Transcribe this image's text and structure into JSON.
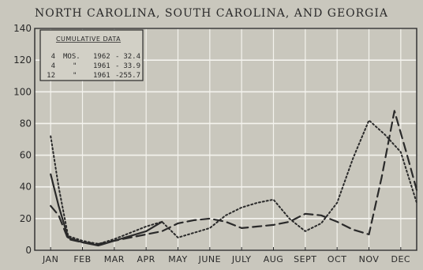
{
  "chart_data": {
    "type": "line",
    "title": "NORTH CAROLINA, SOUTH CAROLINA, AND GEORGIA",
    "xlabel": "",
    "ylabel": "",
    "ylim": [
      0,
      140
    ],
    "yticks": [
      0,
      20,
      40,
      60,
      80,
      100,
      120,
      140
    ],
    "categories": [
      "JAN",
      "FEB",
      "MAR",
      "APR",
      "MAY",
      "JUNE",
      "JULY",
      "AUG",
      "SEPT",
      "OCT",
      "NOV",
      "DEC"
    ],
    "grid": true,
    "legend": {
      "title": "CUMULATIVE DATA",
      "placement": "top-left",
      "rows": [
        {
          "col1": "4",
          "col2": "MOS.",
          "col3": "1962",
          "col4": "32.4"
        },
        {
          "col1": "4",
          "col2": "\"",
          "col3": "1961",
          "col4": "33.9"
        },
        {
          "col1": "12",
          "col2": "\"",
          "col3": "1961",
          "col4": "255.7"
        }
      ]
    },
    "series": [
      {
        "style": "solid",
        "color": "#2a2a2a",
        "points": [
          [
            0.0,
            48
          ],
          [
            0.25,
            28
          ],
          [
            0.55,
            8
          ],
          [
            1.0,
            5
          ],
          [
            1.5,
            3
          ],
          [
            2.0,
            6
          ],
          [
            2.5,
            9
          ],
          [
            3.0,
            12
          ],
          [
            3.5,
            18
          ]
        ]
      },
      {
        "style": "dashed",
        "color": "#2a2a2a",
        "points": [
          [
            0.0,
            28
          ],
          [
            0.25,
            22
          ],
          [
            0.55,
            7
          ],
          [
            1.0,
            5
          ],
          [
            1.5,
            4
          ],
          [
            2.0,
            6
          ],
          [
            2.5,
            8
          ],
          [
            3.0,
            10
          ],
          [
            3.5,
            12
          ],
          [
            4.0,
            17
          ],
          [
            4.5,
            19
          ],
          [
            5.0,
            20
          ],
          [
            5.5,
            18
          ],
          [
            6.0,
            14
          ],
          [
            6.5,
            15
          ],
          [
            7.0,
            16
          ],
          [
            7.5,
            18
          ],
          [
            8.0,
            23
          ],
          [
            8.5,
            22
          ],
          [
            9.0,
            18
          ],
          [
            9.5,
            13
          ],
          [
            10.0,
            10
          ],
          [
            10.4,
            46
          ],
          [
            10.8,
            88
          ],
          [
            11.2,
            60
          ],
          [
            11.5,
            38
          ]
        ]
      },
      {
        "style": "dotted",
        "color": "#2a2a2a",
        "points": [
          [
            0.0,
            72
          ],
          [
            0.25,
            40
          ],
          [
            0.55,
            9
          ],
          [
            1.0,
            6
          ],
          [
            1.5,
            4
          ],
          [
            2.0,
            7
          ],
          [
            2.5,
            11
          ],
          [
            3.0,
            15
          ],
          [
            3.5,
            18
          ],
          [
            4.0,
            8
          ],
          [
            4.5,
            11
          ],
          [
            5.0,
            14
          ],
          [
            5.5,
            22
          ],
          [
            6.0,
            27
          ],
          [
            6.5,
            30
          ],
          [
            7.0,
            32
          ],
          [
            7.5,
            20
          ],
          [
            8.0,
            12
          ],
          [
            8.5,
            17
          ],
          [
            9.0,
            30
          ],
          [
            9.5,
            58
          ],
          [
            10.0,
            82
          ],
          [
            10.5,
            73
          ],
          [
            11.0,
            62
          ],
          [
            11.5,
            30
          ]
        ]
      }
    ]
  }
}
